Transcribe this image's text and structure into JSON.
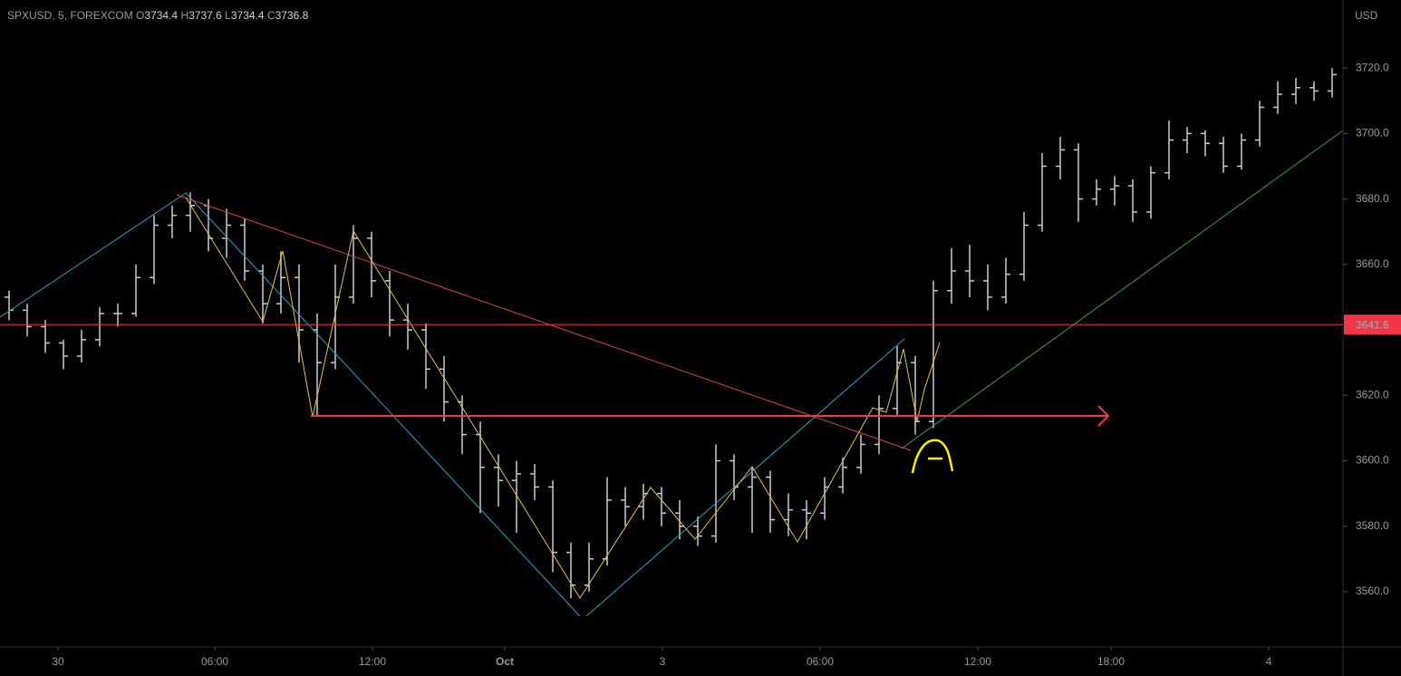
{
  "chart_data": {
    "type": "ohlc",
    "header": {
      "symbol": "SPXUSD, 5, FOREXCOM",
      "o_label": "O",
      "o": 3734.4,
      "h_label": "H",
      "h": 3737.6,
      "l_label": "L",
      "l": 3734.4,
      "c_label": "C",
      "c": 3736.8
    },
    "currency": "USD",
    "current_price": 3641.6,
    "color": "#c8cad0",
    "price_line_color": "#f23645",
    "ylim": [
      3543.1,
      3740.8
    ],
    "yticks": [
      {
        "value": 3560,
        "label": "3560.0"
      },
      {
        "value": 3580,
        "label": "3580.0"
      },
      {
        "value": 3600,
        "label": "3600.0"
      },
      {
        "value": 3620,
        "label": "3620.0"
      },
      {
        "value": 3640,
        "label": "3640.0"
      },
      {
        "value": 3660,
        "label": "3660.0"
      },
      {
        "value": 3680,
        "label": "3680.0"
      },
      {
        "value": 3700,
        "label": "3700.0"
      },
      {
        "value": 3720,
        "label": "3720.0"
      }
    ],
    "xlim": [
      0,
      74.1
    ],
    "xticks": [
      {
        "value": 3.2,
        "label": "30"
      },
      {
        "value": 11.85,
        "label": "06:00"
      },
      {
        "value": 20.55,
        "label": "12:00"
      },
      {
        "value": 27.85,
        "label": "Oct"
      },
      {
        "value": 36.55,
        "label": "3"
      },
      {
        "value": 45.25,
        "label": "06:00"
      },
      {
        "value": 53.95,
        "label": "12:00"
      },
      {
        "value": 61.3,
        "label": "18:00"
      },
      {
        "value": 70,
        "label": "4"
      }
    ],
    "bars": [
      [
        3650,
        3652,
        3643,
        3646
      ],
      [
        3646,
        3648,
        3638,
        3641
      ],
      [
        3641,
        3643,
        3633,
        3636
      ],
      [
        3636,
        3637,
        3628,
        3632
      ],
      [
        3632,
        3640,
        3630,
        3637
      ],
      [
        3637,
        3647,
        3635,
        3645
      ],
      [
        3645,
        3648,
        3641,
        3645
      ],
      [
        3645,
        3660,
        3644,
        3656
      ],
      [
        3656,
        3675,
        3654,
        3672
      ],
      [
        3672,
        3678,
        3668,
        3675
      ],
      [
        3675,
        3682,
        3670,
        3678
      ],
      [
        3678,
        3680,
        3664,
        3668
      ],
      [
        3668,
        3677,
        3662,
        3672
      ],
      [
        3672,
        3674,
        3655,
        3658
      ],
      [
        3658,
        3660,
        3642,
        3648
      ],
      [
        3648,
        3664,
        3645,
        3656
      ],
      [
        3656,
        3660,
        3630,
        3640
      ],
      [
        3640,
        3645,
        3614,
        3630
      ],
      [
        3630,
        3660,
        3628,
        3650
      ],
      [
        3650,
        3672,
        3648,
        3668
      ],
      [
        3668,
        3670,
        3650,
        3655
      ],
      [
        3655,
        3658,
        3638,
        3643
      ],
      [
        3643,
        3648,
        3634,
        3640
      ],
      [
        3640,
        3642,
        3622,
        3628
      ],
      [
        3628,
        3632,
        3612,
        3618
      ],
      [
        3618,
        3620,
        3602,
        3608
      ],
      [
        3608,
        3612,
        3584,
        3598
      ],
      [
        3598,
        3602,
        3586,
        3594
      ],
      [
        3594,
        3600,
        3578,
        3596
      ],
      [
        3596,
        3599,
        3588,
        3592
      ],
      [
        3592,
        3594,
        3566,
        3572
      ],
      [
        3572,
        3575,
        3558,
        3562
      ],
      [
        3562,
        3575,
        3560,
        3570
      ],
      [
        3570,
        3595,
        3568,
        3588
      ],
      [
        3588,
        3592,
        3580,
        3586
      ],
      [
        3586,
        3593,
        3582,
        3590
      ],
      [
        3590,
        3592,
        3580,
        3584
      ],
      [
        3584,
        3588,
        3576,
        3580
      ],
      [
        3580,
        3583,
        3574,
        3577
      ],
      [
        3577,
        3605,
        3575,
        3600
      ],
      [
        3600,
        3602,
        3588,
        3592
      ],
      [
        3592,
        3598,
        3578,
        3595
      ],
      [
        3595,
        3597,
        3578,
        3582
      ],
      [
        3582,
        3590,
        3577,
        3585
      ],
      [
        3585,
        3588,
        3576,
        3584
      ],
      [
        3584,
        3595,
        3582,
        3592
      ],
      [
        3592,
        3601,
        3590,
        3598
      ],
      [
        3598,
        3608,
        3596,
        3605
      ],
      [
        3605,
        3620,
        3602,
        3616
      ],
      [
        3616,
        3635,
        3614,
        3630
      ],
      [
        3630,
        3632,
        3608,
        3612
      ],
      [
        3612,
        3655,
        3610,
        3652
      ],
      [
        3652,
        3665,
        3648,
        3658
      ],
      [
        3658,
        3666,
        3650,
        3655
      ],
      [
        3655,
        3660,
        3646,
        3650
      ],
      [
        3650,
        3662,
        3648,
        3657
      ],
      [
        3657,
        3676,
        3655,
        3672
      ],
      [
        3672,
        3694,
        3670,
        3690
      ],
      [
        3690,
        3699,
        3686,
        3695
      ],
      [
        3695,
        3697,
        3673,
        3680
      ],
      [
        3680,
        3686,
        3678,
        3683
      ],
      [
        3683,
        3687,
        3678,
        3684
      ],
      [
        3684,
        3686,
        3673,
        3676
      ],
      [
        3676,
        3690,
        3674,
        3688
      ],
      [
        3688,
        3704,
        3686,
        3698
      ],
      [
        3698,
        3702,
        3694,
        3700
      ],
      [
        3700,
        3701,
        3693,
        3697
      ],
      [
        3697,
        3699,
        3688,
        3690
      ],
      [
        3690,
        3700,
        3689,
        3698
      ],
      [
        3698,
        3710,
        3696,
        3708
      ],
      [
        3708,
        3716,
        3706,
        3712
      ],
      [
        3712,
        3717,
        3709,
        3714
      ],
      [
        3714,
        3716,
        3710,
        3713
      ],
      [
        3713,
        3720,
        3711,
        3718
      ]
    ]
  }
}
